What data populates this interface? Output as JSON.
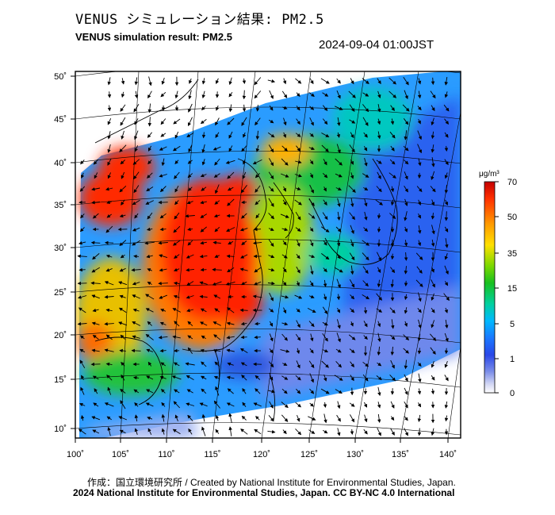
{
  "header": {
    "title_jp": "VENUS シミュレーション結果: PM2.5",
    "title_en": "VENUS simulation result: PM2.5",
    "timestamp": "2024-09-04 01:00JST"
  },
  "map": {
    "lon_ticks": [
      "100˚",
      "105˚",
      "110˚",
      "115˚",
      "120˚",
      "125˚",
      "130˚",
      "135˚",
      "140˚"
    ],
    "lat_ticks": [
      "50˚",
      "45˚",
      "40˚",
      "35˚",
      "30˚",
      "25˚",
      "20˚",
      "15˚",
      "10˚"
    ],
    "background_color": "#ffffff",
    "overlay": "wind-arrows",
    "hotspot_region": "Central/Eastern China",
    "colorbar": {
      "unit": "μg/m³",
      "ticks": [
        "70",
        "50",
        "35",
        "15",
        "5",
        "1",
        "0"
      ],
      "colors": [
        "#c40000",
        "#ff3000",
        "#ff9a00",
        "#ffe000",
        "#7ad800",
        "#18c020",
        "#00d0a0",
        "#00b8ff",
        "#1a78ff",
        "#2a48e8",
        "#7c8ee8",
        "#d4d8f4",
        "#ffffff"
      ]
    }
  },
  "footer": {
    "credit_line1": "作成：国立環境研究所 / Created by National Institute for Environmental Studies, Japan.",
    "credit_line2": "2024 National Institute for Environmental Studies, Japan. CC BY-NC 4.0 International"
  }
}
